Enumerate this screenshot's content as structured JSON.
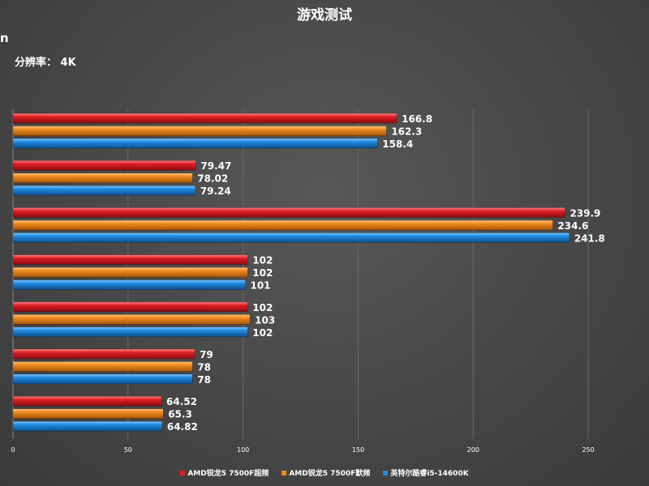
{
  "title": "游戏测试",
  "cut_label": "n",
  "subtitle": "分辨率： 4K",
  "chart_data": {
    "type": "bar",
    "orientation": "horizontal",
    "title": "游戏测试",
    "subtitle": "分辨率： 4K",
    "xlim": [
      0,
      275
    ],
    "x_ticks": [
      0,
      50,
      100,
      150,
      200,
      250
    ],
    "grid": true,
    "legend_position": "bottom",
    "categories": [
      "",
      "",
      "",
      "",
      "",
      "",
      ""
    ],
    "series": [
      {
        "name": "AMD锐龙5 7500F超频",
        "color": "#e01e25",
        "values": [
          166.8,
          79.47,
          239.9,
          102,
          102,
          79,
          64.52
        ],
        "labels": [
          "166.8",
          "79.47",
          "239.9",
          "102",
          "102",
          "79",
          "64.52"
        ]
      },
      {
        "name": "AMD锐龙5 7500F默频",
        "color": "#f08a1e",
        "values": [
          162.3,
          78.02,
          234.6,
          102,
          103,
          78,
          65.3
        ],
        "labels": [
          "162.3",
          "78.02",
          "234.6",
          "102",
          "103",
          "78",
          "65.3"
        ]
      },
      {
        "name": "英特尔酷睿i5-14600K",
        "color": "#1f8ae0",
        "values": [
          158.4,
          79.24,
          241.8,
          101,
          102,
          78,
          64.82
        ],
        "labels": [
          "158.4",
          "79.24",
          "241.8",
          "101",
          "102",
          "78",
          "64.82"
        ]
      }
    ]
  }
}
